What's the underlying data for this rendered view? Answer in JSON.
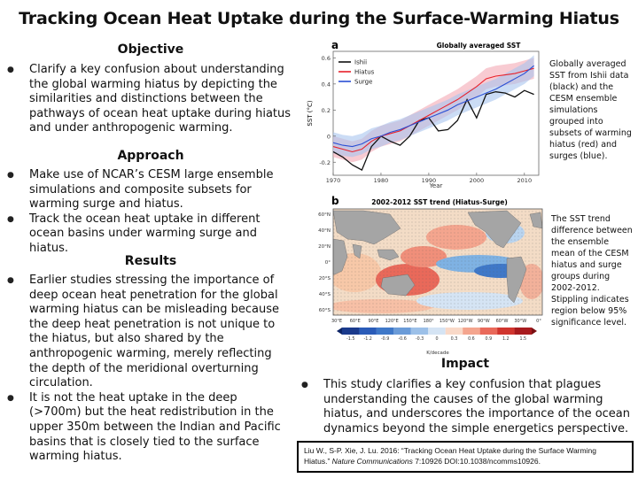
{
  "title": "Tracking Ocean Heat Uptake during the Surface-Warming Hiatus",
  "objective": {
    "heading": "Objective",
    "bullets": [
      "Clarify a key confusion about understanding the global warming hiatus by depicting the similarities and distinctions between the pathways of ocean heat uptake during hiatus and under anthropogenic warming."
    ]
  },
  "approach": {
    "heading": "Approach",
    "bullets": [
      "Make use of NCAR’s CESM large ensemble simulations and composite subsets for warming surge and hiatus.",
      "Track the ocean heat uptake in different ocean basins under warming surge and hiatus."
    ]
  },
  "results": {
    "heading": "Results",
    "bullets": [
      "Earlier studies stressing the importance of deep ocean heat penetration for the global warming hiatus can be misleading because the deep heat penetration is not unique to the hiatus, but also shared by the anthropogenic warming, merely reflecting the depth of the meridional overturning circulation.",
      "It is not the heat uptake in the deep (>700m) but the heat redistribution in the upper 350m between the Indian and Pacific basins that is closely tied to the surface warming hiatus."
    ]
  },
  "impact": {
    "heading": "Impact",
    "bullets": [
      "This study clarifies a key confusion that plagues understanding the causes of the global warming hiatus, and underscores the importance of the ocean dynamics beyond the simple energetics perspective."
    ]
  },
  "figure_a": {
    "panel_label": "a",
    "title": "Globally averaged SST",
    "caption": "Globally averaged SST from Ishii data (black) and the CESM ensemble simulations grouped into subsets of warming hiatus (red) and surges (blue).",
    "legend": [
      "Ishii",
      "Hiatus",
      "Surge"
    ],
    "ylabel": "SST (°C)",
    "xlabel": "Year",
    "y_ticks": [
      "0.6",
      "0.4",
      "0.2",
      "0",
      "-0.2"
    ],
    "x_ticks": [
      "1970",
      "1980",
      "1990",
      "2000",
      "2010"
    ],
    "colors": {
      "ishii": "#111111",
      "hiatus": "#e8202a",
      "surge": "#2a4fd4",
      "hiatus_band": "#f4a9b4",
      "surge_band": "#a9c4ef"
    }
  },
  "figure_b": {
    "panel_label": "b",
    "title": "2002-2012 SST trend (Hiatus-Surge)",
    "caption": "The SST trend difference between the ensemble mean of the CESM hiatus and surge groups during 2002-2012. Stippling indicates region below 95% significance level.",
    "lat_ticks": [
      "60°N",
      "40°N",
      "20°N",
      "0°",
      "20°S",
      "40°S",
      "60°S"
    ],
    "lon_ticks": [
      "30°E",
      "60°E",
      "90°E",
      "120°E",
      "150°E",
      "180°",
      "150°W",
      "120°W",
      "90°W",
      "60°W",
      "30°W",
      "0°"
    ],
    "colorbar_ticks": [
      "-1.5",
      "-1.2",
      "-0.9",
      "-0.6",
      "-0.3",
      "0",
      "0.3",
      "0.6",
      "0.9",
      "1.2",
      "1.5"
    ],
    "colorbar_unit": "K/decade"
  },
  "citation": {
    "line1": "Liu W., S-P. Xie, J. Lu. 2016: “Tracking Ocean Heat Uptake during the Surface Warming",
    "line2_prefix": "Hiatus.” ",
    "journal": "Nature Communications",
    "line2_suffix": " 7:10926 DOI:10.1038/ncomms10926."
  },
  "chart_data": {
    "type": "line",
    "title": "Globally averaged SST",
    "xlabel": "Year",
    "ylabel": "SST (°C)",
    "xlim": [
      1970,
      2013
    ],
    "ylim": [
      -0.3,
      0.65
    ],
    "legend_position": "top-left",
    "x": [
      1970,
      1972,
      1974,
      1976,
      1978,
      1980,
      1982,
      1984,
      1986,
      1988,
      1990,
      1992,
      1994,
      1996,
      1998,
      2000,
      2002,
      2004,
      2006,
      2008,
      2010,
      2012
    ],
    "series": [
      {
        "name": "Ishii",
        "color": "#111111",
        "values": [
          -0.12,
          -0.16,
          -0.22,
          -0.26,
          -0.08,
          0.0,
          -0.04,
          -0.07,
          0.0,
          0.12,
          0.14,
          0.04,
          0.05,
          0.12,
          0.28,
          0.14,
          0.32,
          0.34,
          0.33,
          0.3,
          0.35,
          0.32
        ]
      },
      {
        "name": "Hiatus",
        "color": "#e8202a",
        "values": [
          -0.08,
          -0.1,
          -0.12,
          -0.1,
          -0.04,
          0.0,
          0.02,
          0.04,
          0.08,
          0.12,
          0.16,
          0.2,
          0.24,
          0.28,
          0.33,
          0.38,
          0.44,
          0.46,
          0.47,
          0.48,
          0.5,
          0.52
        ]
      },
      {
        "name": "Surge",
        "color": "#2a4fd4",
        "values": [
          -0.05,
          -0.07,
          -0.08,
          -0.06,
          -0.02,
          0.0,
          0.03,
          0.05,
          0.08,
          0.11,
          0.14,
          0.17,
          0.2,
          0.24,
          0.27,
          0.3,
          0.33,
          0.36,
          0.4,
          0.44,
          0.48,
          0.54
        ]
      }
    ]
  }
}
